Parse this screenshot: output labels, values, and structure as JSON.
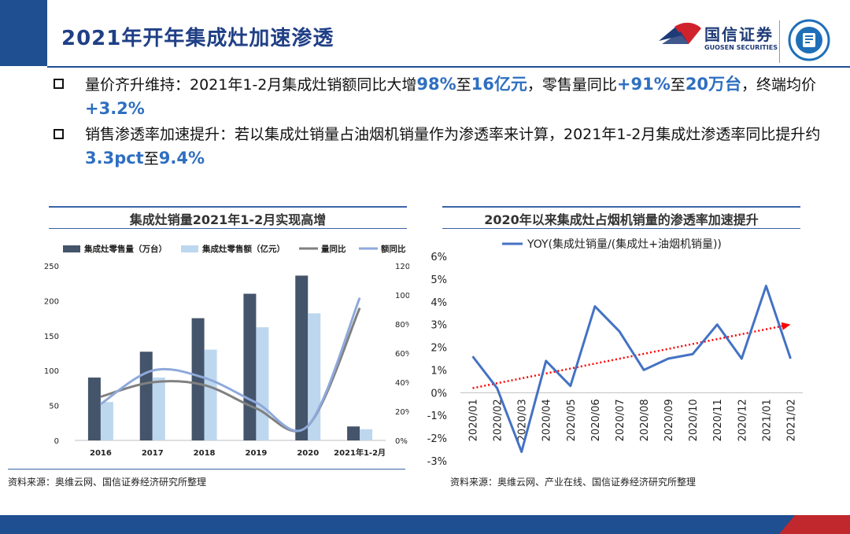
{
  "header": {
    "title": "2021年开年集成灶加速渗透",
    "logo_name": "国信证券",
    "logo_en": "GUOSEN SECURITIES"
  },
  "bullets": [
    {
      "parts": [
        {
          "t": "量价齐升维持：2021年1-2月集成灶销额同比大增",
          "h": false
        },
        {
          "t": "98%",
          "h": true
        },
        {
          "t": "至",
          "h": false
        },
        {
          "t": "16亿元",
          "h": true
        },
        {
          "t": "，零售量同比",
          "h": false
        },
        {
          "t": "+91%",
          "h": true
        },
        {
          "t": "至",
          "h": false
        },
        {
          "t": "20万台",
          "h": true
        },
        {
          "t": "，终端均价",
          "h": false
        },
        {
          "t": "+3.2%",
          "h": true
        }
      ]
    },
    {
      "parts": [
        {
          "t": "销售渗透率加速提升：若以集成灶销量占油烟机销量作为渗透率来计算，2021年1-2月集成灶渗透率同比提升约",
          "h": false
        },
        {
          "t": "3.3pct",
          "h": true
        },
        {
          "t": "至",
          "h": false
        },
        {
          "t": "9.4%",
          "h": true
        }
      ]
    }
  ],
  "left_source": "资料来源：奥维云网、国信证券经济研究所整理",
  "right_source": "资料来源：奥维云网、产业在线、国信证券经济研究所整理",
  "colors": {
    "brand": "#1f4e91",
    "bar_volume": "#44546a",
    "bar_value": "#bdd7ee",
    "line_volume": "#808080",
    "line_value": "#8ea9db",
    "line_yoy": "#4472c4",
    "trend": "#ff0000"
  },
  "chart_data": [
    {
      "type": "bar",
      "title": "集成灶销量2021年1-2月实现高增",
      "categories": [
        "2016",
        "2017",
        "2018",
        "2019",
        "2020",
        "2021年1-2月"
      ],
      "series": [
        {
          "name": "集成灶零售量（万台）",
          "kind": "bar",
          "axis": "left",
          "values": [
            90,
            127,
            175,
            210,
            236,
            20
          ]
        },
        {
          "name": "集成灶零售额（亿元）",
          "kind": "bar",
          "axis": "left",
          "values": [
            55,
            90,
            130,
            162,
            182,
            16
          ]
        },
        {
          "name": "量同比",
          "kind": "line",
          "axis": "right",
          "values": [
            0.3,
            0.4,
            0.38,
            0.22,
            0.1,
            0.91
          ]
        },
        {
          "name": "额同比",
          "kind": "line",
          "axis": "right",
          "values": [
            0.25,
            0.48,
            0.43,
            0.26,
            0.1,
            0.98
          ]
        }
      ],
      "ylim": [
        0,
        250
      ],
      "yticks": [
        0,
        50,
        100,
        150,
        200,
        250
      ],
      "y2lim": [
        0,
        1.2
      ],
      "y2ticks": [
        "0%",
        "20%",
        "40%",
        "60%",
        "80%",
        "100%",
        "120%"
      ],
      "legend": "top"
    },
    {
      "type": "line",
      "title": "2020年以来集成灶占烟机销量的渗透率加速提升",
      "categories": [
        "2020/01",
        "2020/02",
        "2020/03",
        "2020/04",
        "2020/05",
        "2020/06",
        "2020/07",
        "2020/08",
        "2020/09",
        "2020/10",
        "2020/11",
        "2020/12",
        "2021/01",
        "2021/02"
      ],
      "series": [
        {
          "name": "YOY(集成灶销量/(集成灶+油烟机销量))",
          "values": [
            0.016,
            0.002,
            -0.026,
            0.014,
            0.003,
            0.038,
            0.027,
            0.01,
            0.015,
            0.017,
            0.03,
            0.015,
            0.047,
            0.015
          ]
        }
      ],
      "trendline": {
        "from": 0.002,
        "to": 0.03
      },
      "ylim": [
        -0.03,
        0.06
      ],
      "yticks": [
        "-3%",
        "-2%",
        "-1%",
        "0%",
        "1%",
        "2%",
        "3%",
        "4%",
        "5%",
        "6%"
      ],
      "legend": "top"
    }
  ]
}
